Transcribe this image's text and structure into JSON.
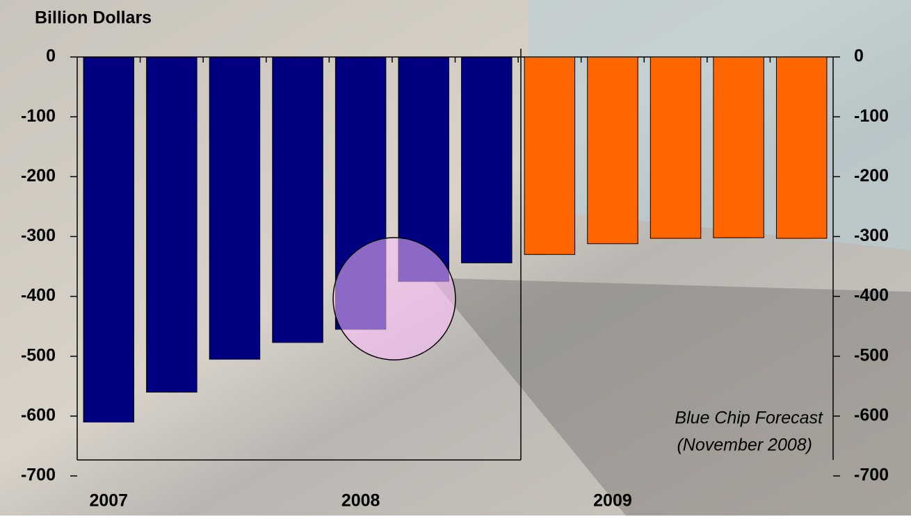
{
  "chart_data": {
    "type": "bar",
    "title": "Billion Dollars",
    "annotation": [
      "Blue Chip Forecast",
      "(November 2008)"
    ],
    "categories": [
      "2007",
      null,
      null,
      null,
      "2008",
      null,
      null,
      null,
      "2009",
      null,
      null,
      null
    ],
    "values": [
      -610,
      -560,
      -505,
      -477,
      -455,
      -375,
      -344,
      -330,
      -312,
      -303,
      -302,
      -303
    ],
    "colors": [
      "#000080",
      "#000080",
      "#000080",
      "#000080",
      "#000080",
      "#000080",
      "#000080",
      "#ff6600",
      "#ff6600",
      "#ff6600",
      "#ff6600",
      "#ff6600"
    ],
    "ylim": [
      -700,
      0
    ],
    "yticks": [
      0,
      -100,
      -200,
      -300,
      -400,
      -500,
      -600,
      -700
    ],
    "y2lim": [
      -700,
      0
    ],
    "y2ticks": [
      0,
      -100,
      -200,
      -300,
      -400,
      -500,
      -600,
      -700
    ],
    "grid": false
  }
}
